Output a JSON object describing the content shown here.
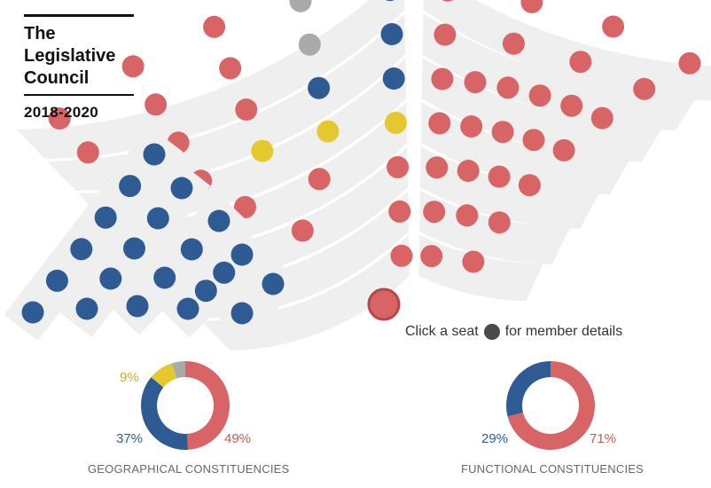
{
  "title": "The\nLegislative\nCouncil",
  "term": "2018-2020",
  "legend": {
    "prefix": "Click a seat",
    "suffix": "for member details",
    "icon": "seat-dot-icon"
  },
  "colors": {
    "pro_establishment": "#d96466",
    "pro_democracy": "#2e5b94",
    "localist": "#e4c82e",
    "vacant": "#aaaaaa",
    "band": "#efefef",
    "presiding": "#d96466"
  },
  "chamber": {
    "presiding_seat": "pro_establishment",
    "left_wing_rows": [
      [
        "pro_democracy",
        "pro_democracy",
        "pro_democracy",
        "pro_democracy",
        "pro_democracy",
        "pro_democracy"
      ],
      [
        "pro_democracy",
        "pro_democracy",
        "pro_democracy",
        "pro_democracy",
        "pro_democracy"
      ],
      [
        "pro_democracy",
        "pro_democracy",
        "pro_democracy",
        "pro_democracy"
      ],
      [
        "pro_democracy",
        "pro_democracy",
        "pro_democracy",
        "pro_democracy"
      ],
      [
        "pro_democracy",
        "pro_democracy"
      ]
    ],
    "center_rows": [
      [
        "pro_democracy",
        "vacant",
        "pro_establishment",
        "pro_establishment",
        "pro_establishment"
      ],
      [
        "pro_democracy",
        "vacant",
        "pro_establishment",
        "pro_establishment",
        "pro_establishment"
      ],
      [
        "pro_democracy",
        "pro_democracy",
        "pro_establishment",
        "pro_establishment",
        "pro_establishment"
      ],
      [
        "localist",
        "localist",
        "localist",
        "pro_establishment",
        "pro_establishment"
      ],
      [
        "pro_establishment",
        "pro_establishment",
        "pro_establishment",
        "pro_establishment"
      ],
      [
        "pro_establishment",
        "pro_establishment",
        "pro_establishment"
      ],
      [
        "pro_establishment",
        "pro_establishment"
      ]
    ],
    "right_rows": [
      [
        "pro_establishment",
        "pro_establishment",
        "pro_establishment",
        "pro_establishment"
      ],
      [
        "pro_establishment",
        "pro_establishment",
        "pro_establishment",
        "pro_establishment"
      ],
      [
        "pro_establishment",
        "pro_establishment",
        "pro_establishment",
        "pro_establishment",
        "pro_establishment",
        "pro_establishment"
      ],
      [
        "pro_establishment",
        "pro_establishment",
        "pro_establishment",
        "pro_establishment",
        "pro_establishment"
      ],
      [
        "pro_establishment",
        "pro_establishment",
        "pro_establishment",
        "pro_establishment"
      ],
      [
        "pro_establishment",
        "pro_establishment",
        "pro_establishment"
      ],
      [
        "pro_establishment",
        "pro_establishment"
      ]
    ]
  },
  "chart_data": [
    {
      "type": "pie",
      "title": "GEOGRAPHICAL CONSTITUENCIES",
      "slices": [
        {
          "group": "pro_establishment",
          "value": 49,
          "label": "49%"
        },
        {
          "group": "pro_democracy",
          "value": 37,
          "label": "37%"
        },
        {
          "group": "localist",
          "value": 9,
          "label": "9%"
        },
        {
          "group": "vacant",
          "value": 5,
          "label": ""
        }
      ]
    },
    {
      "type": "pie",
      "title": "FUNCTIONAL CONSTITUENCIES",
      "slices": [
        {
          "group": "pro_establishment",
          "value": 71,
          "label": "71%"
        },
        {
          "group": "pro_democracy",
          "value": 29,
          "label": "29%"
        }
      ]
    }
  ]
}
